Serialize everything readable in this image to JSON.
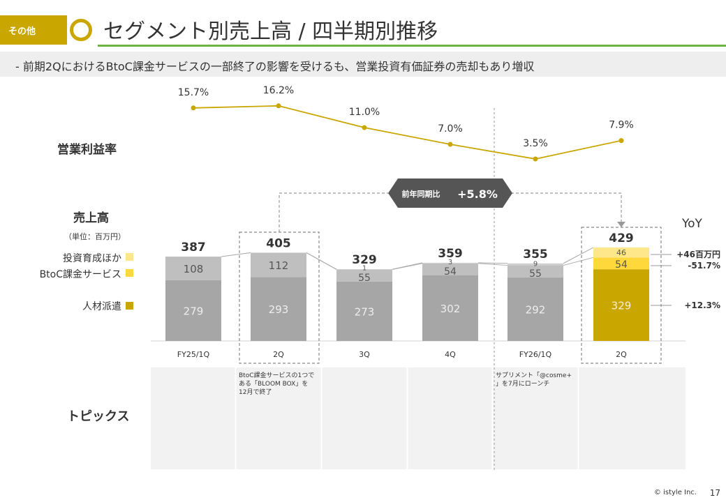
{
  "header": {
    "tag_label": "その他",
    "title": "セグメント別売上高 / 四半期別推移",
    "subtitle": "-  前期2QにおけるBtoC課金サービスの一部終了の影響を受けるも、営業投資有価証券の売却もあり増収"
  },
  "labels": {
    "margin": "営業利益率",
    "sales": "売上高",
    "unit": "（単位：百万円）",
    "topics": "トピックス",
    "yoy": "YoY"
  },
  "callout": {
    "label": "前年同期比",
    "value": "+5.8%"
  },
  "chart_data": {
    "type": "bar",
    "stacked": true,
    "categories": [
      "FY25/1Q",
      "2Q",
      "3Q",
      "4Q",
      "FY26/1Q",
      "2Q"
    ],
    "series": [
      {
        "name": "人材派遣",
        "values": [
          279,
          293,
          273,
          302,
          292,
          329
        ]
      },
      {
        "name": "BtoC課金サービス",
        "values": [
          108,
          112,
          55,
          54,
          55,
          54
        ]
      },
      {
        "name": "投資育成ほか",
        "values": [
          null,
          null,
          1,
          3,
          9,
          46
        ]
      }
    ],
    "totals": [
      387,
      405,
      329,
      359,
      355,
      429
    ],
    "margin_line": {
      "name": "営業利益率",
      "values": [
        15.7,
        16.2,
        11.0,
        7.0,
        3.5,
        7.9
      ],
      "labels": [
        "15.7%",
        "16.2%",
        "11.0%",
        "7.0%",
        "3.5%",
        "7.9%"
      ]
    },
    "yoy": [
      "+46百万円",
      "-51.7%",
      "+12.3%"
    ],
    "colors": {
      "staffing_past": "#a6a6a6",
      "btoc_past": "#bfbfbf",
      "staffing_current": "#c9a600",
      "btoc_current": "#ffd93b",
      "invest_current": "#fde78a",
      "line": "#c9a600"
    }
  },
  "topics": [
    "",
    "BtoC課金サービスの1つである「BLOOM BOX」を12月で終了",
    "",
    "",
    "サプリメント「@cosme+」を7月にローンチ",
    ""
  ],
  "footer": {
    "copyright": "© istyle Inc.",
    "page": "17"
  }
}
